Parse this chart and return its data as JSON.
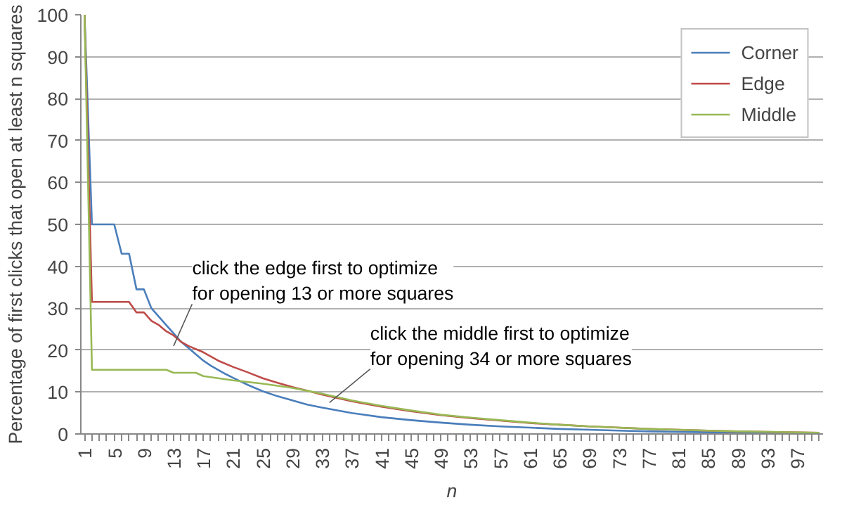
{
  "chart_data": {
    "type": "line",
    "xlabel": "n",
    "ylabel": "Percentage of first clicks that open at least n squares",
    "xlim": [
      0.5,
      100.5
    ],
    "xticks": [
      1,
      5,
      9,
      13,
      17,
      21,
      25,
      29,
      33,
      37,
      41,
      45,
      49,
      53,
      57,
      61,
      65,
      69,
      73,
      77,
      81,
      85,
      89,
      93,
      97
    ],
    "ylim": [
      0,
      100
    ],
    "yticks": [
      0,
      10,
      20,
      30,
      40,
      50,
      60,
      70,
      80,
      90,
      100
    ],
    "grid": "y",
    "legend": "top right",
    "marker": "none",
    "line_style": "solid",
    "series": [
      {
        "name": "Corner",
        "color": "#4a7ebb",
        "x": [
          1,
          2,
          5,
          6,
          7,
          8,
          9,
          10,
          11,
          12,
          13,
          14,
          15,
          16,
          17,
          18,
          19,
          20,
          21,
          23,
          25,
          27,
          29,
          31,
          33,
          37,
          41,
          45,
          49,
          53,
          57,
          61,
          65,
          69,
          73,
          77,
          85,
          93,
          100
        ],
        "values": [
          100,
          50,
          50,
          43,
          43,
          34.5,
          34.5,
          30,
          28,
          26,
          24,
          22,
          20.5,
          19,
          17.5,
          16.3,
          15.3,
          14.3,
          13.4,
          11.7,
          10.2,
          9,
          8,
          7,
          6.3,
          5,
          4,
          3.3,
          2.7,
          2.2,
          1.8,
          1.5,
          1.2,
          1,
          0.8,
          0.6,
          0.4,
          0.3,
          0.2
        ]
      },
      {
        "name": "Edge",
        "color": "#be4b48",
        "x": [
          1,
          2,
          7,
          8,
          9,
          10,
          11,
          12,
          13,
          14,
          15,
          17,
          19,
          21,
          23,
          25,
          27,
          29,
          31,
          33,
          37,
          41,
          45,
          49,
          53,
          57,
          61,
          65,
          69,
          73,
          77,
          81,
          85,
          89,
          93,
          100
        ],
        "values": [
          100,
          31.5,
          31.5,
          29,
          29,
          27,
          26,
          24.5,
          23.5,
          22,
          21,
          19.5,
          17.5,
          16,
          14.7,
          13.3,
          12.2,
          11.2,
          10.3,
          9.4,
          7.8,
          6.5,
          5.4,
          4.5,
          3.8,
          3.2,
          2.6,
          2.2,
          1.8,
          1.5,
          1.2,
          1,
          0.8,
          0.6,
          0.5,
          0.3
        ]
      },
      {
        "name": "Middle",
        "color": "#98b954",
        "x": [
          1,
          2,
          12,
          13,
          16,
          17,
          19,
          21,
          25,
          29,
          31,
          33,
          37,
          41,
          45,
          49,
          53,
          57,
          61,
          65,
          69,
          73,
          77,
          81,
          85,
          89,
          93,
          100
        ],
        "values": [
          100,
          15.3,
          15.3,
          14.6,
          14.6,
          13.8,
          13.3,
          12.8,
          12,
          11,
          10.3,
          9.6,
          8,
          6.7,
          5.6,
          4.6,
          3.9,
          3.3,
          2.7,
          2.2,
          1.8,
          1.5,
          1.2,
          1,
          0.8,
          0.6,
          0.5,
          0.3
        ]
      }
    ],
    "annotations": [
      {
        "text": "click the edge first to optimize\nfor opening 13 or more squares",
        "x": 13,
        "y": 21
      },
      {
        "text": "click the middle first to optimize\nfor opening 34 or more squares",
        "x": 34,
        "y": 7.5
      }
    ]
  }
}
